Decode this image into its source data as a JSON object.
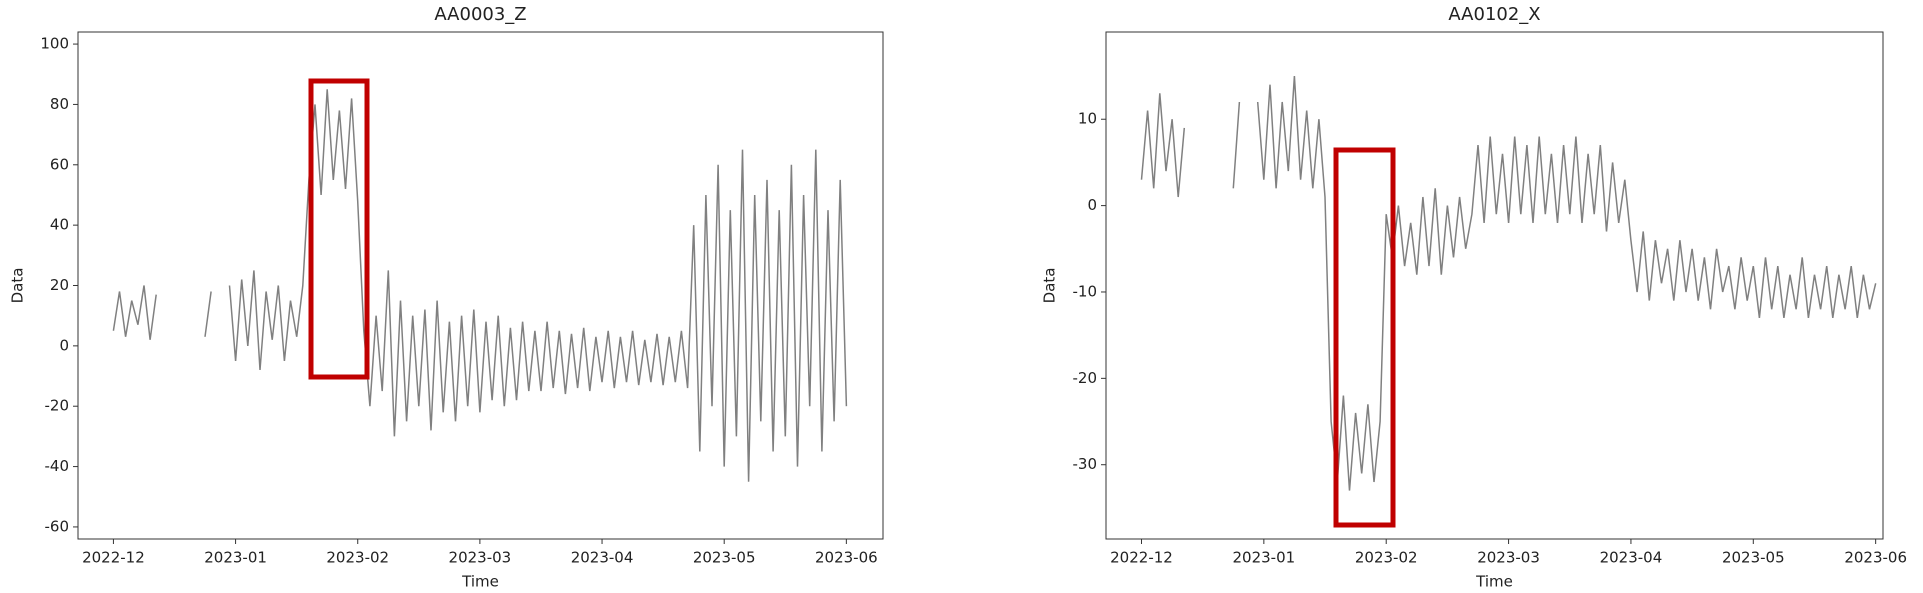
{
  "chart_data": [
    {
      "type": "line",
      "title": "AA0003_Z",
      "x_label": "Time",
      "y_label": "Data",
      "xlim": [
        -0.29,
        6.3
      ],
      "ylim": [
        -64,
        104
      ],
      "xticks": [
        {
          "value": 0,
          "label": "2022-12"
        },
        {
          "value": 1,
          "label": "2023-01"
        },
        {
          "value": 2,
          "label": "2023-02"
        },
        {
          "value": 3,
          "label": "2023-03"
        },
        {
          "value": 4,
          "label": "2023-04"
        },
        {
          "value": 5,
          "label": "2023-05"
        },
        {
          "value": 6,
          "label": "2023-06"
        }
      ],
      "yticks": [
        -60,
        -40,
        -20,
        0,
        20,
        40,
        60,
        80,
        100
      ],
      "series": [
        {
          "color": "#808080",
          "x": [
            0,
            0.05,
            0.1,
            0.15,
            0.2,
            0.25,
            0.3,
            0.35,
            0.4,
            0.45,
            0.5,
            0.55,
            0.6,
            0.65,
            0.7,
            0.75,
            0.8,
            0.85,
            0.9,
            0.95,
            1,
            1.05,
            1.1,
            1.15,
            1.2,
            1.25,
            1.3,
            1.35,
            1.4,
            1.45,
            1.5,
            1.55,
            1.6,
            1.65,
            1.7,
            1.75,
            1.8,
            1.85,
            1.9,
            1.95,
            2,
            2.05,
            2.1,
            2.15,
            2.2,
            2.25,
            2.3,
            2.35,
            2.4,
            2.45,
            2.5,
            2.55,
            2.6,
            2.65,
            2.7,
            2.75,
            2.8,
            2.85,
            2.9,
            2.95,
            3,
            3.05,
            3.1,
            3.15,
            3.2,
            3.25,
            3.3,
            3.35,
            3.4,
            3.45,
            3.5,
            3.55,
            3.6,
            3.65,
            3.7,
            3.75,
            3.8,
            3.85,
            3.9,
            3.95,
            4,
            4.05,
            4.1,
            4.15,
            4.2,
            4.25,
            4.3,
            4.35,
            4.4,
            4.45,
            4.5,
            4.55,
            4.6,
            4.65,
            4.7,
            4.75,
            4.8,
            4.85,
            4.9,
            4.95,
            5,
            5.05,
            5.1,
            5.15,
            5.2,
            5.25,
            5.3,
            5.35,
            5.4,
            5.45,
            5.5,
            5.55,
            5.6,
            5.65,
            5.7,
            5.75,
            5.8,
            5.85,
            5.9,
            5.95,
            6
          ],
          "values": [
            5,
            18,
            3,
            15,
            7,
            20,
            2,
            17,
            null,
            null,
            null,
            null,
            null,
            null,
            null,
            3,
            18,
            null,
            null,
            20,
            -5,
            22,
            0,
            25,
            -8,
            18,
            2,
            20,
            -5,
            15,
            3,
            20,
            55,
            80,
            50,
            85,
            55,
            78,
            52,
            82,
            48,
            5,
            -20,
            10,
            -15,
            25,
            -30,
            15,
            -25,
            10,
            -20,
            12,
            -28,
            15,
            -22,
            8,
            -25,
            10,
            -20,
            12,
            -22,
            8,
            -18,
            10,
            -20,
            6,
            -18,
            8,
            -15,
            5,
            -15,
            8,
            -14,
            5,
            -16,
            4,
            -14,
            6,
            -15,
            3,
            -12,
            5,
            -14,
            3,
            -12,
            5,
            -13,
            2,
            -12,
            4,
            -13,
            3,
            -12,
            5,
            -14,
            40,
            -35,
            50,
            -20,
            60,
            -40,
            45,
            -30,
            65,
            -45,
            50,
            -25,
            55,
            -35,
            45,
            -30,
            60,
            -40,
            50,
            -20,
            65,
            -35,
            45,
            -25,
            55,
            -20
          ]
        }
      ]
    },
    {
      "type": "line",
      "title": "AA0102_X",
      "x_label": "Time",
      "y_label": "Data",
      "xlim": [
        -0.29,
        6.06
      ],
      "ylim": [
        -38.6,
        20.1
      ],
      "xticks": [
        {
          "value": 0,
          "label": "2022-12"
        },
        {
          "value": 1,
          "label": "2023-01"
        },
        {
          "value": 2,
          "label": "2023-02"
        },
        {
          "value": 3,
          "label": "2023-03"
        },
        {
          "value": 4,
          "label": "2023-04"
        },
        {
          "value": 5,
          "label": "2023-05"
        },
        {
          "value": 6,
          "label": "2023-06"
        }
      ],
      "yticks": [
        -30,
        -20,
        -10,
        0,
        10
      ],
      "series": [
        {
          "color": "#808080",
          "x": [
            0,
            0.05,
            0.1,
            0.15,
            0.2,
            0.25,
            0.3,
            0.35,
            0.4,
            0.45,
            0.5,
            0.55,
            0.6,
            0.65,
            0.7,
            0.75,
            0.8,
            0.85,
            0.9,
            0.95,
            1,
            1.05,
            1.1,
            1.15,
            1.2,
            1.25,
            1.3,
            1.35,
            1.4,
            1.45,
            1.5,
            1.55,
            1.6,
            1.65,
            1.7,
            1.75,
            1.8,
            1.85,
            1.9,
            1.95,
            2,
            2.05,
            2.1,
            2.15,
            2.2,
            2.25,
            2.3,
            2.35,
            2.4,
            2.45,
            2.5,
            2.55,
            2.6,
            2.65,
            2.7,
            2.75,
            2.8,
            2.85,
            2.9,
            2.95,
            3,
            3.05,
            3.1,
            3.15,
            3.2,
            3.25,
            3.3,
            3.35,
            3.4,
            3.45,
            3.5,
            3.55,
            3.6,
            3.65,
            3.7,
            3.75,
            3.8,
            3.85,
            3.9,
            3.95,
            4,
            4.05,
            4.1,
            4.15,
            4.2,
            4.25,
            4.3,
            4.35,
            4.4,
            4.45,
            4.5,
            4.55,
            4.6,
            4.65,
            4.7,
            4.75,
            4.8,
            4.85,
            4.9,
            4.95,
            5,
            5.05,
            5.1,
            5.15,
            5.2,
            5.25,
            5.3,
            5.35,
            5.4,
            5.45,
            5.5,
            5.55,
            5.6,
            5.65,
            5.7,
            5.75,
            5.8,
            5.85,
            5.9,
            5.95,
            6
          ],
          "values": [
            3,
            11,
            2,
            13,
            4,
            10,
            1,
            9,
            null,
            null,
            null,
            null,
            null,
            null,
            null,
            2,
            12,
            null,
            null,
            12,
            3,
            14,
            2,
            12,
            4,
            15,
            3,
            11,
            2,
            10,
            1,
            -25,
            -32,
            -22,
            -33,
            -24,
            -31,
            -23,
            -32,
            -25,
            -1,
            -6,
            0,
            -7,
            -2,
            -8,
            1,
            -7,
            2,
            -8,
            0,
            -6,
            1,
            -5,
            -1,
            7,
            -2,
            8,
            -1,
            6,
            -2,
            8,
            -1,
            7,
            -2,
            8,
            -1,
            6,
            -2,
            7,
            -1,
            8,
            -2,
            6,
            -1,
            7,
            -3,
            5,
            -2,
            3,
            -4,
            -10,
            -3,
            -11,
            -4,
            -9,
            -5,
            -11,
            -4,
            -10,
            -5,
            -11,
            -6,
            -12,
            -5,
            -10,
            -7,
            -12,
            -6,
            -11,
            -7,
            -13,
            -6,
            -12,
            -7,
            -13,
            -8,
            -12,
            -6,
            -13,
            -8,
            -12,
            -7,
            -13,
            -8,
            -12,
            -7,
            -13,
            -8,
            -12,
            -9
          ]
        }
      ]
    }
  ]
}
